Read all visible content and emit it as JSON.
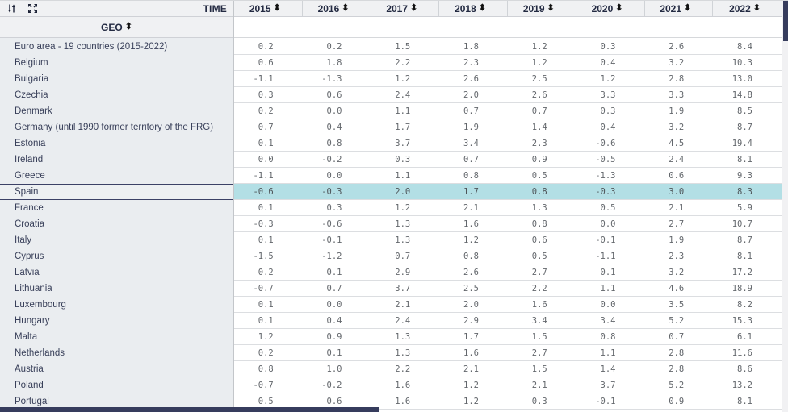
{
  "toolbar": {
    "time_label": "TIME",
    "geo_label": "GEO",
    "sort_icon_name": "sort-updown-icon",
    "swap_icon_name": "swap-vertical-icon",
    "expand_icon_name": "expand-fullscreen-icon"
  },
  "columns": [
    "2015",
    "2016",
    "2017",
    "2018",
    "2019",
    "2020",
    "2021",
    "2022"
  ],
  "sort_glyph": "⬍",
  "highlight_color": "#b3dfe5",
  "accent_navy": "#363c5d",
  "rows": [
    {
      "geo": "Euro area - 19 countries (2015-2022)",
      "highlighted": false,
      "values": [
        "0.2",
        "0.2",
        "1.5",
        "1.8",
        "1.2",
        "0.3",
        "2.6",
        "8.4"
      ]
    },
    {
      "geo": "Belgium",
      "highlighted": false,
      "values": [
        "0.6",
        "1.8",
        "2.2",
        "2.3",
        "1.2",
        "0.4",
        "3.2",
        "10.3"
      ]
    },
    {
      "geo": "Bulgaria",
      "highlighted": false,
      "values": [
        "-1.1",
        "-1.3",
        "1.2",
        "2.6",
        "2.5",
        "1.2",
        "2.8",
        "13.0"
      ]
    },
    {
      "geo": "Czechia",
      "highlighted": false,
      "values": [
        "0.3",
        "0.6",
        "2.4",
        "2.0",
        "2.6",
        "3.3",
        "3.3",
        "14.8"
      ]
    },
    {
      "geo": "Denmark",
      "highlighted": false,
      "values": [
        "0.2",
        "0.0",
        "1.1",
        "0.7",
        "0.7",
        "0.3",
        "1.9",
        "8.5"
      ]
    },
    {
      "geo": "Germany (until 1990 former territory of the FRG)",
      "highlighted": false,
      "values": [
        "0.7",
        "0.4",
        "1.7",
        "1.9",
        "1.4",
        "0.4",
        "3.2",
        "8.7"
      ]
    },
    {
      "geo": "Estonia",
      "highlighted": false,
      "values": [
        "0.1",
        "0.8",
        "3.7",
        "3.4",
        "2.3",
        "-0.6",
        "4.5",
        "19.4"
      ]
    },
    {
      "geo": "Ireland",
      "highlighted": false,
      "values": [
        "0.0",
        "-0.2",
        "0.3",
        "0.7",
        "0.9",
        "-0.5",
        "2.4",
        "8.1"
      ]
    },
    {
      "geo": "Greece",
      "highlighted": false,
      "values": [
        "-1.1",
        "0.0",
        "1.1",
        "0.8",
        "0.5",
        "-1.3",
        "0.6",
        "9.3"
      ]
    },
    {
      "geo": "Spain",
      "highlighted": true,
      "values": [
        "-0.6",
        "-0.3",
        "2.0",
        "1.7",
        "0.8",
        "-0.3",
        "3.0",
        "8.3"
      ]
    },
    {
      "geo": "France",
      "highlighted": false,
      "values": [
        "0.1",
        "0.3",
        "1.2",
        "2.1",
        "1.3",
        "0.5",
        "2.1",
        "5.9"
      ]
    },
    {
      "geo": "Croatia",
      "highlighted": false,
      "values": [
        "-0.3",
        "-0.6",
        "1.3",
        "1.6",
        "0.8",
        "0.0",
        "2.7",
        "10.7"
      ]
    },
    {
      "geo": "Italy",
      "highlighted": false,
      "values": [
        "0.1",
        "-0.1",
        "1.3",
        "1.2",
        "0.6",
        "-0.1",
        "1.9",
        "8.7"
      ]
    },
    {
      "geo": "Cyprus",
      "highlighted": false,
      "values": [
        "-1.5",
        "-1.2",
        "0.7",
        "0.8",
        "0.5",
        "-1.1",
        "2.3",
        "8.1"
      ]
    },
    {
      "geo": "Latvia",
      "highlighted": false,
      "values": [
        "0.2",
        "0.1",
        "2.9",
        "2.6",
        "2.7",
        "0.1",
        "3.2",
        "17.2"
      ]
    },
    {
      "geo": "Lithuania",
      "highlighted": false,
      "values": [
        "-0.7",
        "0.7",
        "3.7",
        "2.5",
        "2.2",
        "1.1",
        "4.6",
        "18.9"
      ]
    },
    {
      "geo": "Luxembourg",
      "highlighted": false,
      "values": [
        "0.1",
        "0.0",
        "2.1",
        "2.0",
        "1.6",
        "0.0",
        "3.5",
        "8.2"
      ]
    },
    {
      "geo": "Hungary",
      "highlighted": false,
      "values": [
        "0.1",
        "0.4",
        "2.4",
        "2.9",
        "3.4",
        "3.4",
        "5.2",
        "15.3"
      ]
    },
    {
      "geo": "Malta",
      "highlighted": false,
      "values": [
        "1.2",
        "0.9",
        "1.3",
        "1.7",
        "1.5",
        "0.8",
        "0.7",
        "6.1"
      ]
    },
    {
      "geo": "Netherlands",
      "highlighted": false,
      "values": [
        "0.2",
        "0.1",
        "1.3",
        "1.6",
        "2.7",
        "1.1",
        "2.8",
        "11.6"
      ]
    },
    {
      "geo": "Austria",
      "highlighted": false,
      "values": [
        "0.8",
        "1.0",
        "2.2",
        "2.1",
        "1.5",
        "1.4",
        "2.8",
        "8.6"
      ]
    },
    {
      "geo": "Poland",
      "highlighted": false,
      "values": [
        "-0.7",
        "-0.2",
        "1.6",
        "1.2",
        "2.1",
        "3.7",
        "5.2",
        "13.2"
      ]
    },
    {
      "geo": "Portugal",
      "highlighted": false,
      "values": [
        "0.5",
        "0.6",
        "1.6",
        "1.2",
        "0.3",
        "-0.1",
        "0.9",
        "8.1"
      ]
    }
  ]
}
